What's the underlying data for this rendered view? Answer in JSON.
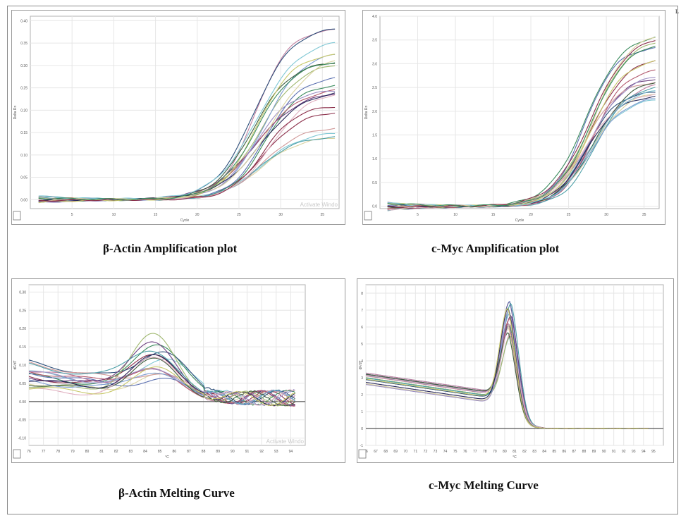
{
  "captions": {
    "actin_amp": "β-Actin Amplification plot",
    "myc_amp": "c-Myc Amplification plot",
    "actin_melt": "β-Actin Melting Curve",
    "myc_melt": "c-Myc Melting Curve"
  },
  "watermark": "Activate Windo",
  "corner_mark": "L",
  "colors": [
    "#7fc7d4",
    "#d9d2a0",
    "#8b2f4a",
    "#3c8c5e",
    "#5a6fb0",
    "#c07fa0",
    "#2e4f7a",
    "#a0b870",
    "#6a3d7d",
    "#d09a9a",
    "#4ea0a8",
    "#b35a6e",
    "#7a9bd0",
    "#9c8fc4",
    "#3f5e3f",
    "#e0b0c0",
    "#2a2a5a",
    "#c8c86a"
  ],
  "chart_data": [
    {
      "id": "actin_amp",
      "type": "line",
      "title": "β-Actin Amplification plot",
      "xlabel": "Cycle",
      "ylabel": "Delta Rn",
      "xlim": [
        0,
        37
      ],
      "ylim": [
        -0.02,
        0.41
      ],
      "xticks": [
        "5",
        "10",
        "15",
        "20",
        "25",
        "30",
        "35"
      ],
      "yticks": [
        "0.00",
        "0.05",
        "0.10",
        "0.15",
        "0.20",
        "0.25",
        "0.30",
        "0.35",
        "0.40"
      ],
      "curve": {
        "kind": "sigmoid",
        "mid": [
          26.5,
          29
        ],
        "slope": [
          2.0,
          2.8
        ],
        "plateau": [
          0.12,
          0.4
        ]
      },
      "n_series": 22,
      "grid": true
    },
    {
      "id": "myc_amp",
      "type": "line",
      "title": "c-Myc Amplification plot",
      "xlabel": "Cycle",
      "ylabel": "Delta Rn",
      "xlim": [
        0,
        37
      ],
      "ylim": [
        -0.05,
        4.0
      ],
      "xticks": [
        "5",
        "10",
        "15",
        "20",
        "25",
        "30",
        "35"
      ],
      "yticks": [
        "0.0",
        "0.5",
        "1.0",
        "1.5",
        "2.0",
        "2.5",
        "3.0",
        "3.5",
        "4.0"
      ],
      "curve": {
        "kind": "sigmoid",
        "mid": [
          27,
          29
        ],
        "slope": [
          2.0,
          2.6
        ],
        "plateau": [
          2.3,
          3.8
        ]
      },
      "n_series": 22,
      "grid": true
    },
    {
      "id": "actin_melt",
      "type": "line",
      "title": "β-Actin Melting Curve",
      "xlabel": "°C",
      "ylabel": "dF/dT",
      "xlim": [
        76,
        95
      ],
      "ylim": [
        -0.12,
        0.32
      ],
      "xticks": [
        "76",
        "77",
        "78",
        "79",
        "80",
        "81",
        "82",
        "83",
        "84",
        "85",
        "86",
        "87",
        "88",
        "89",
        "90",
        "91",
        "92",
        "93",
        "94"
      ],
      "yticks": [
        "-0.10",
        "-0.05",
        "0.00",
        "0.05",
        "0.10",
        "0.15",
        "0.20",
        "0.25",
        "0.30"
      ],
      "baseline": 0,
      "curve": {
        "kind": "broad-peak",
        "peak_x": 85,
        "peak_y": [
          0.08,
          0.2
        ]
      },
      "n_series": 18,
      "grid": true
    },
    {
      "id": "myc_melt",
      "type": "line",
      "title": "c-Myc Melting Curve",
      "xlabel": "°C",
      "ylabel": "dF/dT",
      "xlim": [
        66,
        96
      ],
      "ylim": [
        -1.0,
        8.5
      ],
      "xticks": [
        "66",
        "67",
        "68",
        "69",
        "70",
        "71",
        "72",
        "73",
        "74",
        "75",
        "76",
        "77",
        "78",
        "79",
        "80",
        "81",
        "82",
        "83",
        "84",
        "85",
        "86",
        "87",
        "88",
        "89",
        "90",
        "91",
        "92",
        "93",
        "94",
        "95"
      ],
      "yticks": [
        "-1",
        "0",
        "1",
        "2",
        "3",
        "4",
        "5",
        "6",
        "7",
        "8"
      ],
      "baseline": 0,
      "curve": {
        "kind": "sharp-peak",
        "peak_x": 80.5,
        "peak_y": [
          5.3,
          7.6
        ]
      },
      "n_series": 18,
      "grid": true
    }
  ]
}
